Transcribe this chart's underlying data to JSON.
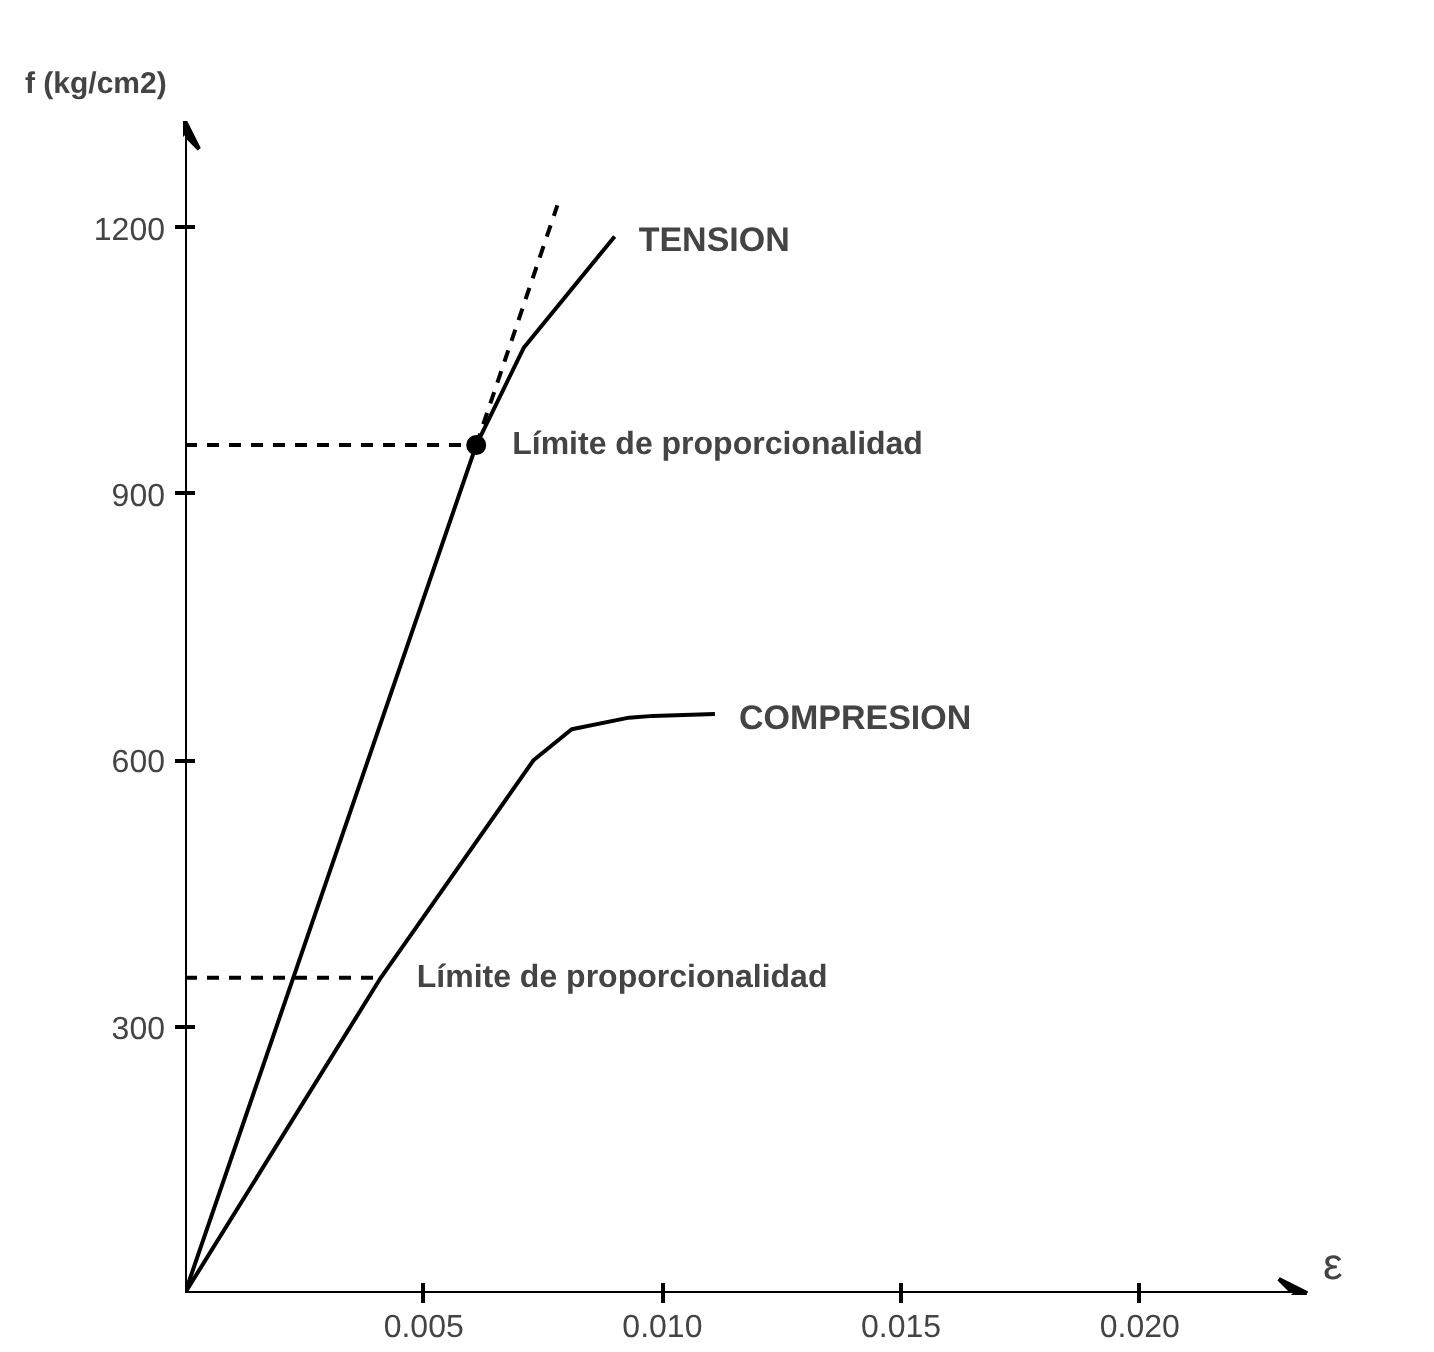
{
  "chart_data": {
    "type": "line",
    "ylabel": "f (kg/cm2)",
    "xlabel": "ε",
    "xlim": [
      0,
      0.0235
    ],
    "ylim": [
      0,
      1320
    ],
    "xticks": [
      {
        "value": 0.005,
        "label": "0.005"
      },
      {
        "value": 0.01,
        "label": "0.010"
      },
      {
        "value": 0.015,
        "label": "0.015"
      },
      {
        "value": 0.02,
        "label": "0.020"
      }
    ],
    "yticks": [
      300,
      600,
      900,
      1200
    ],
    "series": [
      {
        "name": "TENSION",
        "color": "#000000",
        "x": [
          0,
          0.0061,
          0.0071,
          0.009
        ],
        "values": [
          0,
          955,
          1065,
          1190
        ]
      },
      {
        "color": "#000000",
        "line_style": "dashed",
        "x": [
          0.0061,
          0.0078
        ],
        "values": [
          955,
          1225
        ]
      },
      {
        "type": "scatter",
        "color": "#000000",
        "marker": "circle",
        "x": [
          0.0061
        ],
        "values": [
          955
        ]
      },
      {
        "name": "COMPRESION",
        "color": "#000000",
        "x": [
          0,
          0.0041,
          0.0073,
          0.0081,
          0.0093,
          0.0098,
          0.0111
        ],
        "values": [
          0,
          355,
          600,
          635,
          648,
          650,
          652
        ]
      }
    ],
    "ref_lines": [
      {
        "axis": "y",
        "value": 955,
        "label": "Límite de proporcionalidad",
        "line_style": "dashed",
        "color": "#000000"
      },
      {
        "axis": "y",
        "value": 355,
        "label": "Límite de proporcionalidad",
        "line_style": "dashed",
        "color": "#000000"
      }
    ],
    "grid": false,
    "legend": false,
    "line_style": "solid",
    "marker": "none"
  }
}
